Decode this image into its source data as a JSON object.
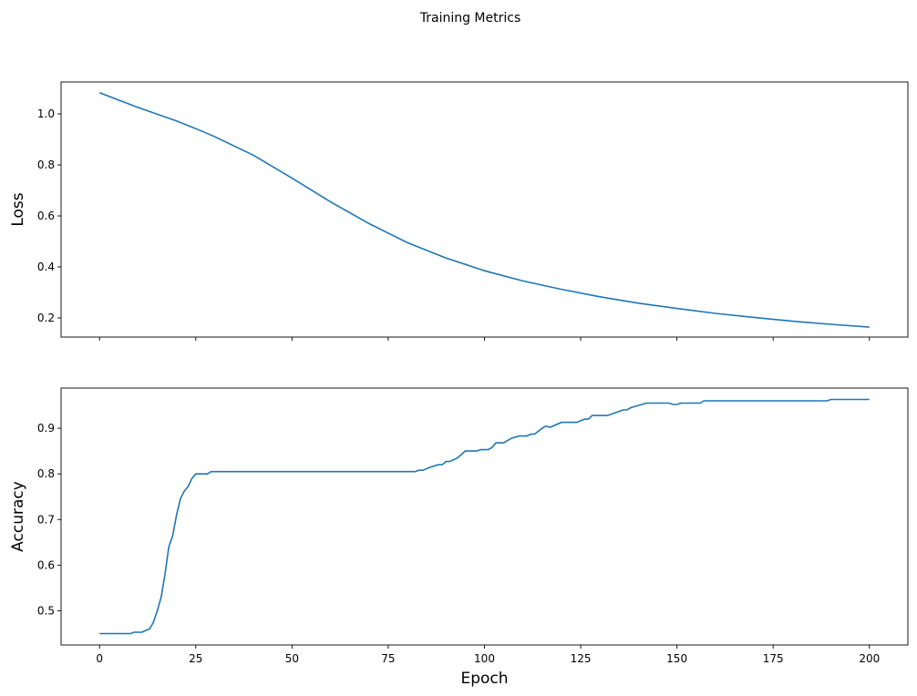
{
  "chart_data": [
    {
      "type": "line",
      "title": "Training Metrics",
      "xlabel": "",
      "ylabel": "Loss",
      "xlim": [
        -10,
        210
      ],
      "ylim": [
        0.125,
        1.125
      ],
      "xticks": [
        0,
        25,
        50,
        75,
        100,
        125,
        150,
        175,
        200
      ],
      "xtick_labels_shown": false,
      "yticks": [
        0.2,
        0.4,
        0.6,
        0.8,
        1.0
      ],
      "ytick_labels": [
        "0.2",
        "0.4",
        "0.6",
        "0.8",
        "1.0"
      ],
      "grid": false,
      "color": "#1f77b4",
      "x": [
        0,
        10,
        20,
        25,
        30,
        40,
        50,
        60,
        70,
        80,
        90,
        100,
        110,
        120,
        130,
        140,
        150,
        160,
        170,
        180,
        190,
        200
      ],
      "y": [
        1.083,
        1.025,
        0.972,
        0.942,
        0.91,
        0.838,
        0.748,
        0.655,
        0.57,
        0.495,
        0.435,
        0.385,
        0.345,
        0.312,
        0.283,
        0.258,
        0.237,
        0.218,
        0.202,
        0.187,
        0.175,
        0.164
      ]
    },
    {
      "type": "line",
      "xlabel": "Epoch",
      "ylabel": "Accuracy",
      "xlim": [
        -10,
        210
      ],
      "ylim": [
        0.425,
        0.988
      ],
      "xticks": [
        0,
        25,
        50,
        75,
        100,
        125,
        150,
        175,
        200
      ],
      "xtick_labels": [
        "0",
        "25",
        "50",
        "75",
        "100",
        "125",
        "150",
        "175",
        "200"
      ],
      "yticks": [
        0.5,
        0.6,
        0.7,
        0.8,
        0.9
      ],
      "ytick_labels": [
        "0.5",
        "0.6",
        "0.7",
        "0.8",
        "0.9"
      ],
      "grid": false,
      "color": "#1f77b4",
      "x": [
        0,
        8,
        9,
        11,
        12,
        13,
        14,
        15,
        16,
        17,
        18,
        19,
        20,
        21,
        22,
        23,
        24,
        25,
        28,
        29,
        82,
        83,
        84,
        86,
        88,
        89,
        90,
        91,
        93,
        95,
        98,
        99,
        101,
        102,
        103,
        105,
        107,
        109,
        111,
        112,
        113,
        115,
        116,
        117,
        120,
        124,
        126,
        127,
        128,
        132,
        135,
        136,
        137,
        138,
        142,
        148,
        149,
        150,
        151,
        156,
        157,
        189,
        190,
        200
      ],
      "y": [
        0.45,
        0.45,
        0.453,
        0.453,
        0.457,
        0.46,
        0.475,
        0.5,
        0.53,
        0.58,
        0.64,
        0.665,
        0.71,
        0.745,
        0.762,
        0.772,
        0.79,
        0.8,
        0.8,
        0.805,
        0.805,
        0.808,
        0.808,
        0.815,
        0.82,
        0.82,
        0.827,
        0.827,
        0.835,
        0.85,
        0.85,
        0.853,
        0.853,
        0.858,
        0.868,
        0.868,
        0.878,
        0.883,
        0.883,
        0.887,
        0.887,
        0.9,
        0.905,
        0.902,
        0.913,
        0.913,
        0.92,
        0.92,
        0.928,
        0.928,
        0.937,
        0.94,
        0.94,
        0.945,
        0.955,
        0.955,
        0.952,
        0.952,
        0.955,
        0.955,
        0.96,
        0.96,
        0.963,
        0.963
      ]
    }
  ]
}
